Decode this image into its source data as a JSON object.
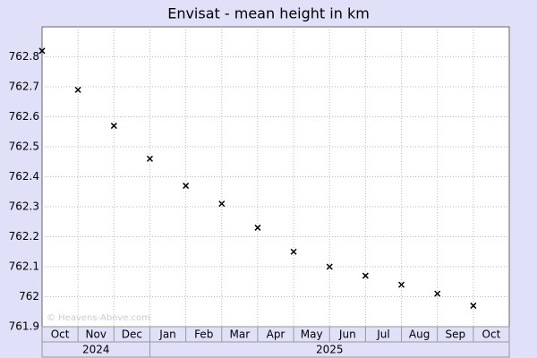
{
  "chart_data": {
    "type": "scatter",
    "title": "Envisat - mean height in km",
    "watermark": "© Heavens-Above.com",
    "x": [
      "2024-10",
      "2024-11",
      "2024-12",
      "2025-01",
      "2025-02",
      "2025-03",
      "2025-04",
      "2025-05",
      "2025-06",
      "2025-07",
      "2025-08",
      "2025-09",
      "2025-10"
    ],
    "series": [
      {
        "name": "mean height",
        "color": "#000000",
        "values": [
          762.82,
          762.69,
          762.57,
          762.46,
          762.37,
          762.31,
          762.23,
          762.15,
          762.1,
          762.07,
          762.04,
          762.01,
          761.97
        ]
      }
    ],
    "xlim": [
      "2024-10",
      "2025-11"
    ],
    "xticks": [
      {
        "value": "2024-10",
        "label": "Oct"
      },
      {
        "value": "2024-11",
        "label": "Nov"
      },
      {
        "value": "2024-12",
        "label": "Dec"
      },
      {
        "value": "2025-01",
        "label": "Jan"
      },
      {
        "value": "2025-02",
        "label": "Feb"
      },
      {
        "value": "2025-03",
        "label": "Mar"
      },
      {
        "value": "2025-04",
        "label": "Apr"
      },
      {
        "value": "2025-05",
        "label": "May"
      },
      {
        "value": "2025-06",
        "label": "Jun"
      },
      {
        "value": "2025-07",
        "label": "Jul"
      },
      {
        "value": "2025-08",
        "label": "Aug"
      },
      {
        "value": "2025-09",
        "label": "Sep"
      },
      {
        "value": "2025-10",
        "label": "Oct"
      }
    ],
    "years": [
      "2024",
      "2025"
    ],
    "ylim": [
      761.9,
      762.9
    ],
    "yticks": [
      {
        "value": 761.9,
        "label": "761.9"
      },
      {
        "value": 762,
        "label": "762"
      },
      {
        "value": 762.1,
        "label": "762.1"
      },
      {
        "value": 762.2,
        "label": "762.2"
      },
      {
        "value": 762.3,
        "label": "762.3"
      },
      {
        "value": 762.4,
        "label": "762.4"
      },
      {
        "value": 762.5,
        "label": "762.5"
      },
      {
        "value": 762.6,
        "label": "762.6"
      },
      {
        "value": 762.7,
        "label": "762.7"
      },
      {
        "value": 762.8,
        "label": "762.8"
      }
    ],
    "grid": true
  }
}
